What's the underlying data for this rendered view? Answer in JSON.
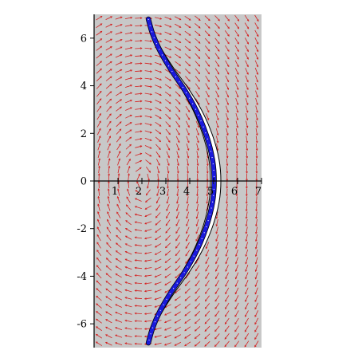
{
  "chart_data": {
    "type": "phase-portrait",
    "xlim": [
      0.0,
      7.0
    ],
    "ylim": [
      -7.0,
      7.0
    ],
    "x_ticks": [
      "1",
      "2",
      "3",
      "4",
      "5",
      "6",
      "7"
    ],
    "y_ticks": [
      "6",
      "4",
      "2",
      "0",
      "-2",
      "-4",
      "-6"
    ],
    "grid": false,
    "field": {
      "rows": 44,
      "cols": 17,
      "arrow_color": "#d42020",
      "background": "#c8c8c8"
    },
    "region": {
      "fill": "#ffffff",
      "boundary_color": "#000000"
    },
    "trajectory": {
      "color": "#1a1adc",
      "highlight_color": "#ffffff",
      "points": [
        [
          2.27,
          6.8
        ],
        [
          2.44,
          6.2
        ],
        [
          2.74,
          5.5
        ],
        [
          3.2,
          4.7
        ],
        [
          3.8,
          3.8
        ],
        [
          4.3,
          2.9
        ],
        [
          4.7,
          1.9
        ],
        [
          4.95,
          0.9
        ],
        [
          5.02,
          0.0
        ],
        [
          4.95,
          -0.9
        ],
        [
          4.7,
          -1.9
        ],
        [
          4.3,
          -2.9
        ],
        [
          3.8,
          -3.8
        ],
        [
          3.2,
          -4.7
        ],
        [
          2.74,
          -5.5
        ],
        [
          2.44,
          -6.2
        ],
        [
          2.27,
          -6.8
        ]
      ]
    }
  }
}
